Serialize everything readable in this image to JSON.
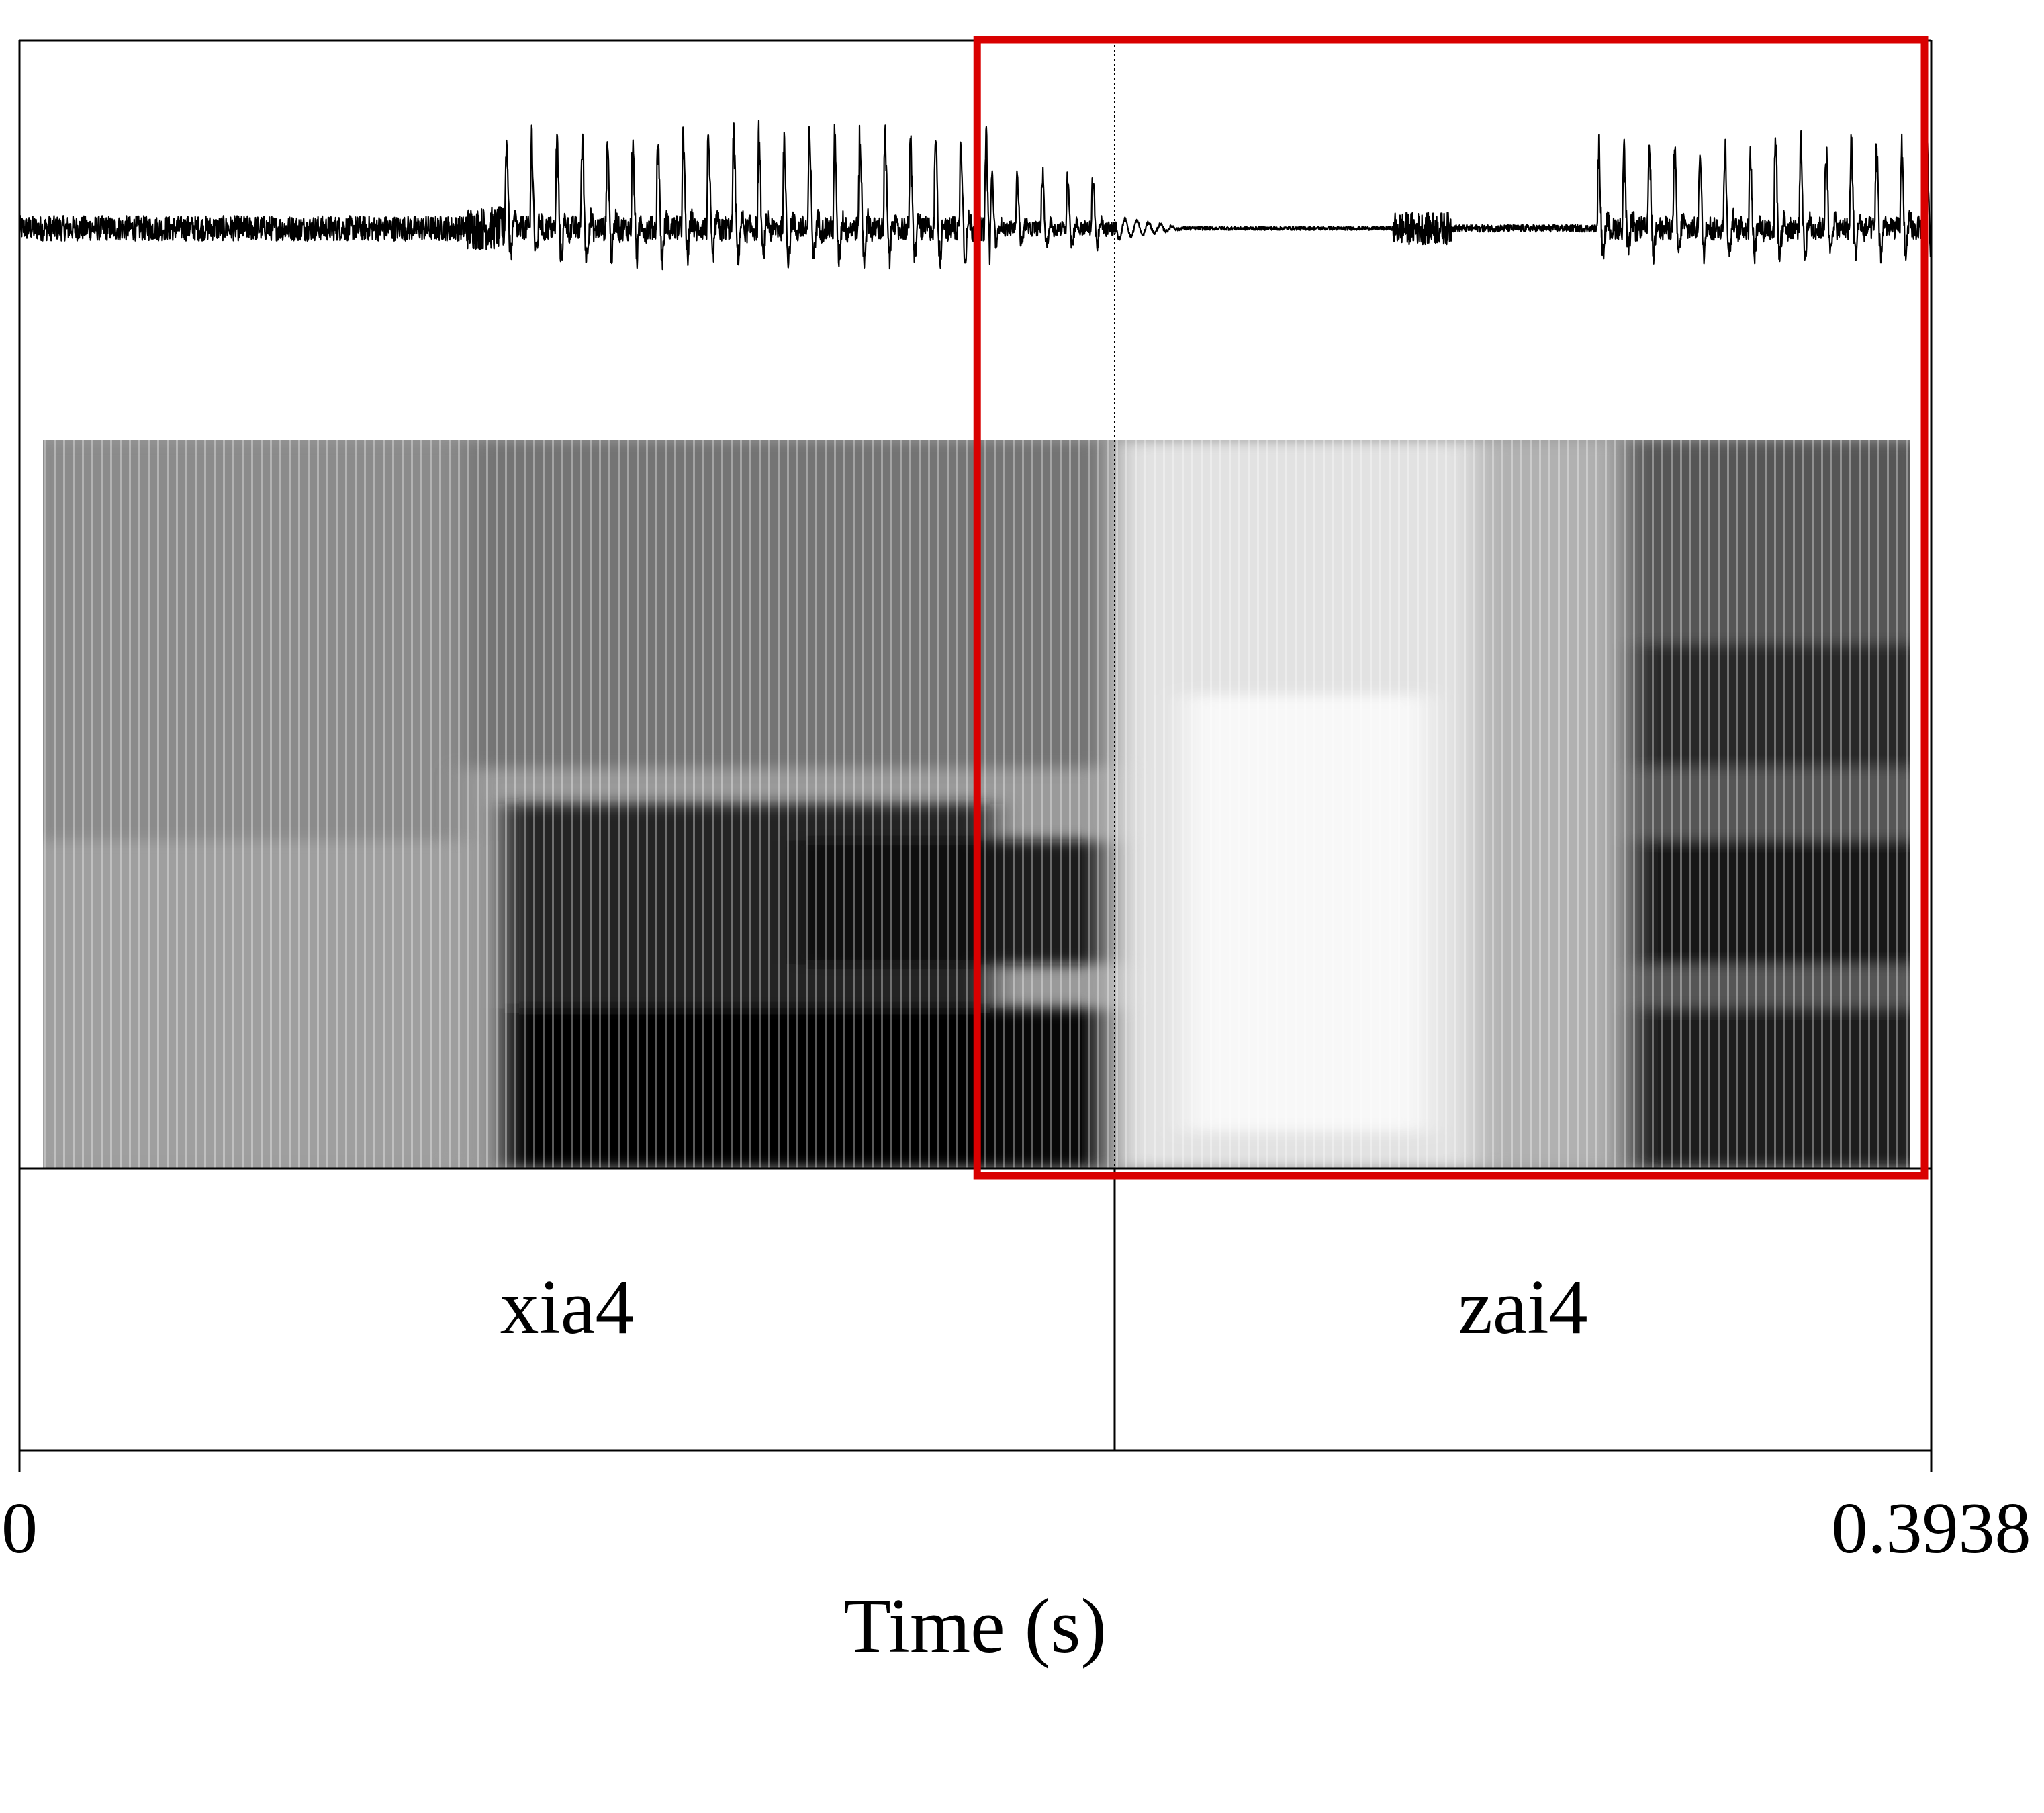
{
  "chart_data": {
    "type": "waveform-spectrogram",
    "title": "",
    "xlabel": "Time (s)",
    "xlim": [
      0,
      0.3938
    ],
    "x_ticks": [
      "0",
      "0.3938"
    ],
    "boundary_time": 0.2256,
    "intervals": [
      {
        "label": "xia4",
        "start": 0,
        "end": 0.2256
      },
      {
        "label": "zai4",
        "start": 0.2256,
        "end": 0.3938
      }
    ],
    "waveform_segments": [
      {
        "start": 0.0,
        "end": 0.092,
        "amplitude": 0.07,
        "kind": "noise"
      },
      {
        "start": 0.092,
        "end": 0.1,
        "amplitude": 0.12,
        "kind": "onset"
      },
      {
        "start": 0.1,
        "end": 0.2,
        "amplitude": 0.92,
        "kind": "voiced"
      },
      {
        "start": 0.2,
        "end": 0.226,
        "amplitude": 0.55,
        "kind": "voiced"
      },
      {
        "start": 0.226,
        "end": 0.24,
        "amplitude": 0.06,
        "kind": "decay"
      },
      {
        "start": 0.24,
        "end": 0.283,
        "amplitude": 0.01,
        "kind": "silence"
      },
      {
        "start": 0.283,
        "end": 0.295,
        "amplitude": 0.09,
        "kind": "burst"
      },
      {
        "start": 0.295,
        "end": 0.325,
        "amplitude": 0.02,
        "kind": "silence"
      },
      {
        "start": 0.325,
        "end": 0.3938,
        "amplitude": 0.85,
        "kind": "voiced"
      }
    ],
    "highlight": {
      "start": 0.197,
      "end": 0.3938,
      "color": "#d90000",
      "covers": "waveform-and-spectrogram"
    },
    "colors": {
      "ink": "#000000",
      "highlight": "#d90000"
    }
  }
}
